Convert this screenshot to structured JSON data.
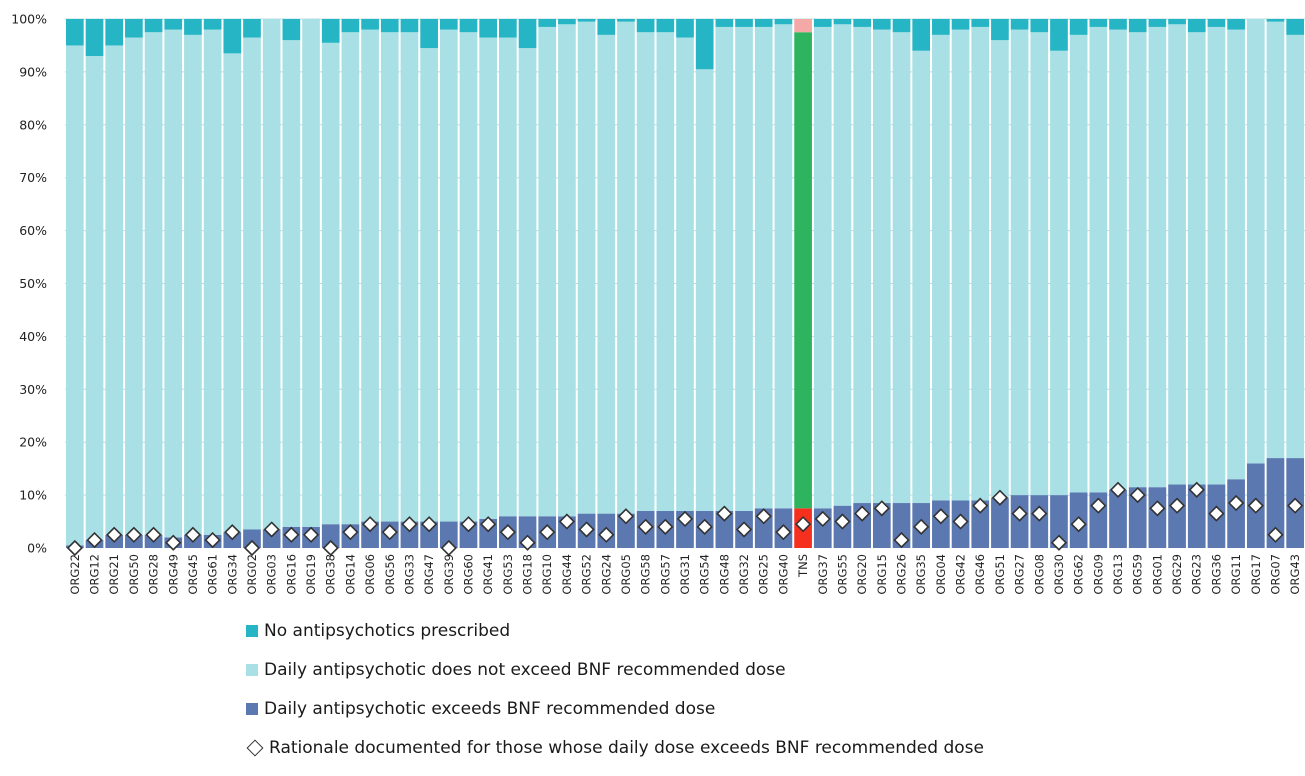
{
  "colors": {
    "none": "#25b5c4",
    "notExceed": "#a8e0e6",
    "exceed": "#5b78b0",
    "tnsNone": "#f4a9a7",
    "tnsNotExceed": "#2eb45e",
    "tnsExceed": "#f5301f",
    "grid": "#b9dde2",
    "diamondStroke": "#333333"
  },
  "legend": [
    {
      "label": "No antipsychotics prescribed",
      "marker": "square",
      "color": "#25b5c4"
    },
    {
      "label": "Daily antipsychotic does not exceed BNF recommended dose",
      "marker": "square",
      "color": "#a8e0e6"
    },
    {
      "label": "Daily antipsychotic exceeds BNF recommended dose",
      "marker": "square",
      "color": "#5b78b0"
    },
    {
      "label": "Rationale documented for those whose daily dose exceeds BNF recommended dose",
      "marker": "diamond",
      "color": "#ffffff"
    }
  ],
  "chart_data": {
    "type": "bar",
    "stacked": true,
    "ylim": [
      0,
      100
    ],
    "yticks": [
      "0%",
      "10%",
      "20%",
      "30%",
      "40%",
      "50%",
      "60%",
      "70%",
      "80%",
      "90%",
      "100%"
    ],
    "grid": true,
    "legend_position": "bottom",
    "highlight_category": "TNS",
    "categories": [
      "ORG22",
      "ORG12",
      "ORG21",
      "ORG50",
      "ORG28",
      "ORG49",
      "ORG45",
      "ORG61",
      "ORG34",
      "ORG02",
      "ORG03",
      "ORG16",
      "ORG19",
      "ORG38",
      "ORG14",
      "ORG06",
      "ORG56",
      "ORG33",
      "ORG47",
      "ORG39",
      "ORG60",
      "ORG41",
      "ORG53",
      "ORG18",
      "ORG10",
      "ORG44",
      "ORG52",
      "ORG24",
      "ORG05",
      "ORG58",
      "ORG57",
      "ORG31",
      "ORG54",
      "ORG48",
      "ORG32",
      "ORG25",
      "ORG40",
      "TNS",
      "ORG37",
      "ORG55",
      "ORG20",
      "ORG15",
      "ORG26",
      "ORG35",
      "ORG04",
      "ORG42",
      "ORG46",
      "ORG51",
      "ORG27",
      "ORG08",
      "ORG30",
      "ORG62",
      "ORG09",
      "ORG13",
      "ORG59",
      "ORG01",
      "ORG29",
      "ORG23",
      "ORG36",
      "ORG11",
      "ORG17",
      "ORG07",
      "ORG43"
    ],
    "series": [
      {
        "name": "Daily antipsychotic exceeds BNF recommended dose",
        "values": [
          0.5,
          1.5,
          2.5,
          2.5,
          2.5,
          2,
          2.5,
          2.5,
          3,
          3.5,
          3.5,
          4,
          4,
          4.5,
          4.5,
          5,
          5,
          5,
          5,
          5,
          5,
          5.5,
          6,
          6,
          6,
          6,
          6.5,
          6.5,
          6.5,
          7,
          7,
          7,
          7,
          7,
          7,
          7.5,
          7.5,
          7.5,
          7.5,
          8,
          8.5,
          8.5,
          8.5,
          8.5,
          9,
          9,
          9,
          9.5,
          10,
          10,
          10,
          10.5,
          10.5,
          11,
          11.5,
          11.5,
          12,
          12,
          12,
          13,
          16,
          17,
          17
        ]
      },
      {
        "name": "Daily antipsychotic does not exceed BNF recommended dose",
        "values": [
          94.5,
          91.5,
          92.5,
          94,
          95,
          96,
          94.5,
          95.5,
          90.5,
          93,
          96.5,
          92,
          96,
          91,
          93,
          93,
          92.5,
          92.5,
          89.5,
          93,
          92.5,
          91,
          90.5,
          88.5,
          92.5,
          93,
          93,
          90.5,
          93,
          90.5,
          90.5,
          89.5,
          83.5,
          91.5,
          91.5,
          91,
          91.5,
          90,
          91,
          91,
          90,
          89.5,
          89,
          85.5,
          88,
          89,
          89.5,
          86.5,
          88,
          87.5,
          84,
          86.5,
          88,
          87,
          86,
          87,
          87,
          85.5,
          86.5,
          85,
          84,
          82.5,
          80
        ]
      },
      {
        "name": "No antipsychotics prescribed",
        "values": [
          5,
          7,
          5,
          3.5,
          2.5,
          2,
          3,
          2,
          6.5,
          3.5,
          0,
          4,
          0,
          4.5,
          2.5,
          2,
          2.5,
          2.5,
          5.5,
          2,
          2.5,
          3.5,
          3.5,
          5.5,
          1.5,
          1,
          0.5,
          3,
          0.5,
          2.5,
          2.5,
          3.5,
          9.5,
          1.5,
          1.5,
          1.5,
          1,
          2.5,
          1.5,
          1,
          1.5,
          2,
          2.5,
          6,
          3,
          2,
          1.5,
          4,
          2,
          2.5,
          6,
          3,
          1.5,
          2,
          2.5,
          1.5,
          1,
          2.5,
          1.5,
          2,
          0,
          0.5,
          3
        ]
      }
    ],
    "rationale_documented": [
      0,
      1.5,
      2.5,
      2.5,
      2.5,
      1,
      2.5,
      1.5,
      3,
      0,
      3.5,
      2.5,
      2.5,
      0,
      3,
      4.5,
      3,
      4.5,
      4.5,
      0,
      4.5,
      4.5,
      3,
      1,
      3,
      5,
      3.5,
      2.5,
      6,
      4,
      4,
      5.5,
      4,
      6.5,
      3.5,
      6,
      3,
      4.5,
      5.5,
      5,
      6.5,
      7.5,
      1.5,
      4,
      6,
      5,
      8,
      9.5,
      6.5,
      6.5,
      1,
      4.5,
      8,
      11,
      10,
      7.5,
      8,
      11,
      6.5,
      8.5,
      8,
      2.5,
      8
    ]
  }
}
